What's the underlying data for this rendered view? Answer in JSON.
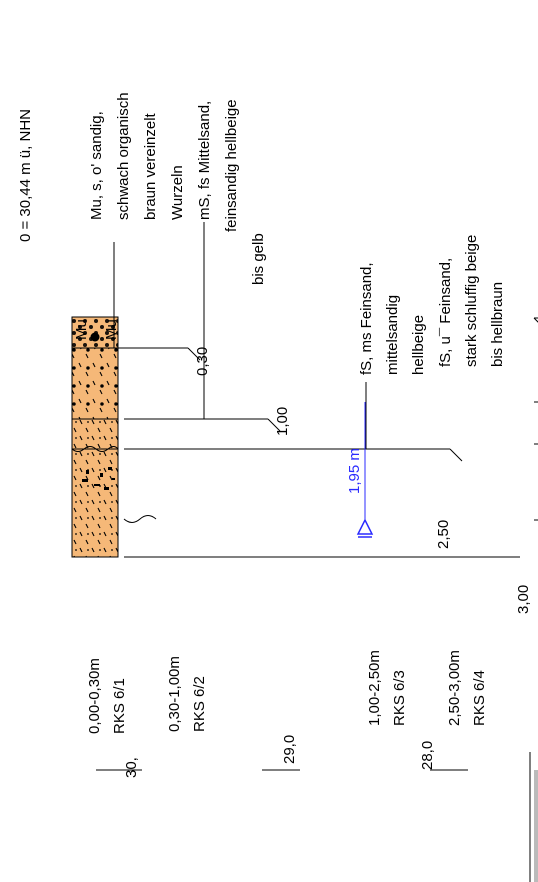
{
  "header": {
    "reference_level": "0 = 30,44 m ü, NHN"
  },
  "layers": [
    {
      "depth_label": "0,30",
      "description": [
        "Mu, s, o' sandig,",
        "schwach organisch",
        "braun vereinzelt",
        "Wurzeln"
      ]
    },
    {
      "depth_label": "1,00",
      "description": [
        "mS, fs Mittelsand,",
        "feinsandig hellbeige",
        "bis gelb"
      ]
    },
    {
      "depth_label": "2,50",
      "description": [
        "fS, ms Feinsand,",
        "mittelsandig",
        "hellbeige"
      ]
    },
    {
      "depth_label": "3,00",
      "description": [
        "fS, u¯ Feinsand,",
        "stark schluffig beige",
        "bis hellbraun"
      ]
    }
  ],
  "column_symbol": {
    "left": "Mu",
    "right": "Mu"
  },
  "groundwater": {
    "label": "1,95 m"
  },
  "samples": [
    {
      "range": "0,00-0,30m",
      "id": "RKS 6/1"
    },
    {
      "range": "0,30-1,00m",
      "id": "RKS 6/2"
    },
    {
      "range": "1,00-2,50m",
      "id": "RKS 6/3"
    },
    {
      "range": "2,50-3,00m",
      "id": "RKS 6/4"
    }
  ],
  "elevation_scale": {
    "ticks": [
      "30,",
      "29,0",
      "28,0"
    ]
  },
  "colors": {
    "column_fill": "#f5b878",
    "groundwater": "#2b2bff",
    "ink": "#000000",
    "scale_grey": "#bbbbbb"
  }
}
